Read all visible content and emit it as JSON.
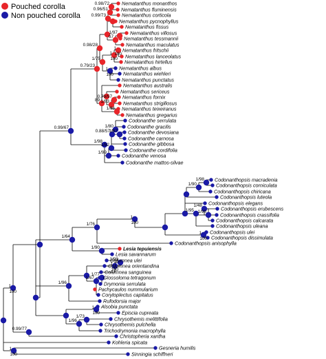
{
  "legend": {
    "pouched": {
      "label": "Pouched corolla",
      "color": "#e8252a"
    },
    "non_pouched": {
      "label": "Non pouched corolla",
      "color": "#1a1aa6"
    }
  },
  "taxa": [
    {
      "name": "Nematanthus monanthos",
      "state": "pouched"
    },
    {
      "name": "Nematanthus fluminensis",
      "state": "pouched"
    },
    {
      "name": "Nematanthus corticola",
      "state": "pouched"
    },
    {
      "name": "Nematanthus pycnophyllus",
      "state": "pouched"
    },
    {
      "name": "Nematanthus fissus",
      "state": "pouched"
    },
    {
      "name": "Nematanthus villosus",
      "state": "pouched"
    },
    {
      "name": "Nematanthus tessmannii",
      "state": "pouched"
    },
    {
      "name": "Nematanthus maculatus",
      "state": "pouched"
    },
    {
      "name": "Nematanthus fritschii",
      "state": "pouched"
    },
    {
      "name": "Nematanthus lanceolatus",
      "state": "pouched"
    },
    {
      "name": "Nematanthus hirtellus",
      "state": "pouched"
    },
    {
      "name": "Nematanthus albus",
      "state": "non"
    },
    {
      "name": "Nematanthus wiehleri",
      "state": "non"
    },
    {
      "name": "Nematanthus punctatus",
      "state": "non"
    },
    {
      "name": "Nematanthus australis",
      "state": "pouched"
    },
    {
      "name": "Nematanthus sericeus",
      "state": "pouched"
    },
    {
      "name": "Nematanthus fornix",
      "state": "pouched"
    },
    {
      "name": "Nematanthus strigillosus",
      "state": "pouched"
    },
    {
      "name": "Nematanthus teixeiranus",
      "state": "pouched"
    },
    {
      "name": "Nematanthus gregarius",
      "state": "pouched"
    },
    {
      "name": "Codonanthe serrulata",
      "state": "non"
    },
    {
      "name": "Codonanthe gracilis",
      "state": "non"
    },
    {
      "name": "Codonanthe devosiana",
      "state": "non"
    },
    {
      "name": "Codonanthe carnosa",
      "state": "non"
    },
    {
      "name": "Codonanthe gibbosa",
      "state": "non"
    },
    {
      "name": "Codonanthe cordifolia",
      "state": "non"
    },
    {
      "name": "Codonanthe venosa",
      "state": "non"
    },
    {
      "name": "Codonanthe mattos-silvae",
      "state": "non"
    },
    {
      "name": "Codonanthopsis macradenia",
      "state": "non"
    },
    {
      "name": "Codonanthopsis corniculata",
      "state": "non"
    },
    {
      "name": "Codonanthopsis chiricana",
      "state": "non"
    },
    {
      "name": "Codonanthopsis luteola",
      "state": "non"
    },
    {
      "name": "Codonanthopsis elegans",
      "state": "non"
    },
    {
      "name": "Codonanthopsis erubescens",
      "state": "non"
    },
    {
      "name": "Codonanthopsis crassifolia",
      "state": "non"
    },
    {
      "name": "Codonanthopsis calcarata",
      "state": "non"
    },
    {
      "name": "Codonanthopsis uleana",
      "state": "non"
    },
    {
      "name": "Codonanthopsis ulei",
      "state": "non"
    },
    {
      "name": "Codonanthopsis dissimulata",
      "state": "non"
    },
    {
      "name": "Codonanthopsis anisophylla",
      "state": "non"
    },
    {
      "name": "Lesia tepuiensis",
      "state": "pouched",
      "bold": true
    },
    {
      "name": "Lesia savannarum",
      "state": "non"
    },
    {
      "name": "Columnea ulei",
      "state": "non"
    },
    {
      "name": "Columnea orientandina",
      "state": "non"
    },
    {
      "name": "Columnea sanguinea",
      "state": "non"
    },
    {
      "name": "Glossoloma tetragonum",
      "state": "non"
    },
    {
      "name": "Drymonia serrulata",
      "state": "non"
    },
    {
      "name": "Pachycaulos nummularium",
      "state": "pouched"
    },
    {
      "name": "Corytoplectus capitatus",
      "state": "non"
    },
    {
      "name": "Rufodorsia major",
      "state": "non"
    },
    {
      "name": "Alsobia punctata",
      "state": "non"
    },
    {
      "name": "Episcia cupreata",
      "state": "non"
    },
    {
      "name": "Chrysothemis melittifolia",
      "state": "non"
    },
    {
      "name": "Chrysothemis pulchella",
      "state": "non"
    },
    {
      "name": "Trichodrymonia macrophylla",
      "state": "non"
    },
    {
      "name": "Christopheria xantha",
      "state": "non"
    },
    {
      "name": "Kohleria spicata",
      "state": "non"
    },
    {
      "name": "Gesneria humilis",
      "state": "non"
    },
    {
      "name": "Sinningia schiffneri",
      "state": "non"
    }
  ],
  "support_labels": [
    "0.98/72",
    "0.96/51",
    "0.99/73",
    "1/97",
    "67",
    "0.98/28",
    "1/100",
    "1/100",
    "1/100",
    "0.79/23",
    "1/75",
    "89",
    "0.79/57",
    "1/83",
    "1/66",
    "0.99/67",
    "1/98",
    "1/80",
    "0.88/57",
    "1/67",
    "1/82",
    "1/99",
    "1/90",
    "1/98",
    "1/95",
    "1/48",
    "1/98",
    "1/100",
    "1/100",
    "1/76",
    "1/64",
    "1/90",
    "1/100",
    "1/99",
    "1/77",
    "1/67",
    "1/96",
    "1/100",
    "1/96",
    "1/73",
    "1/100",
    "0.99/77",
    "1/100"
  ]
}
